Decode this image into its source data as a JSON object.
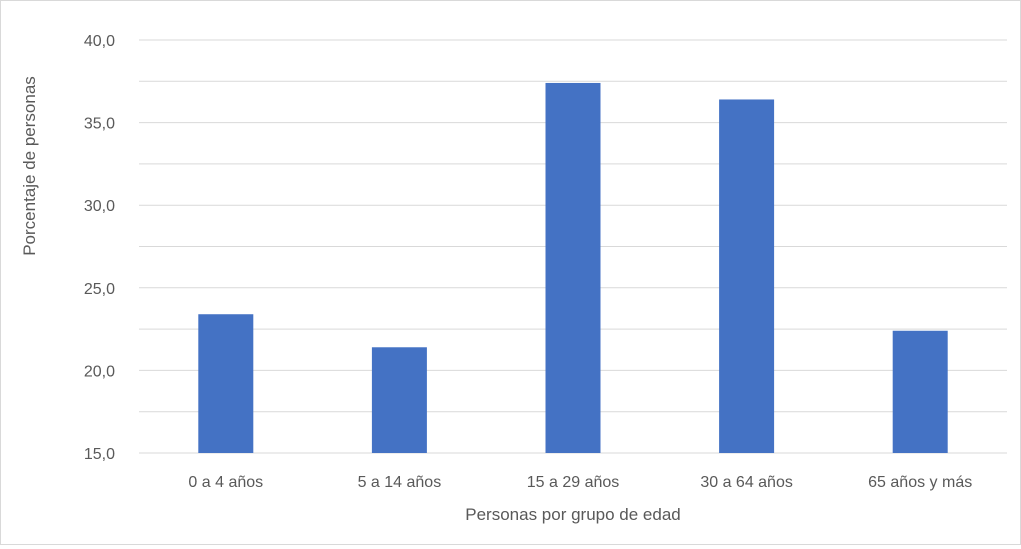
{
  "chart_data": {
    "type": "bar",
    "title": "",
    "xlabel": "Personas por grupo de edad",
    "ylabel": "Porcentaje de personas",
    "categories": [
      "0 a 4 años",
      "5 a 14 años",
      "15 a 29 años",
      "30 a 64 años",
      "65 años y más"
    ],
    "series": [
      {
        "values": [
          23.4,
          21.4,
          37.4,
          36.4,
          22.4
        ]
      }
    ],
    "ylim": [
      15,
      40
    ],
    "yticks": [
      15,
      20,
      25,
      30,
      35,
      40
    ],
    "ytick_labels": [
      "15,0",
      "20,0",
      "25,0",
      "30,0",
      "35,0",
      "40,0"
    ],
    "grid": true,
    "legend": "none",
    "colors": {
      "bar": "#4472C4",
      "grid": "#d9d9d9",
      "text": "#595959"
    }
  }
}
